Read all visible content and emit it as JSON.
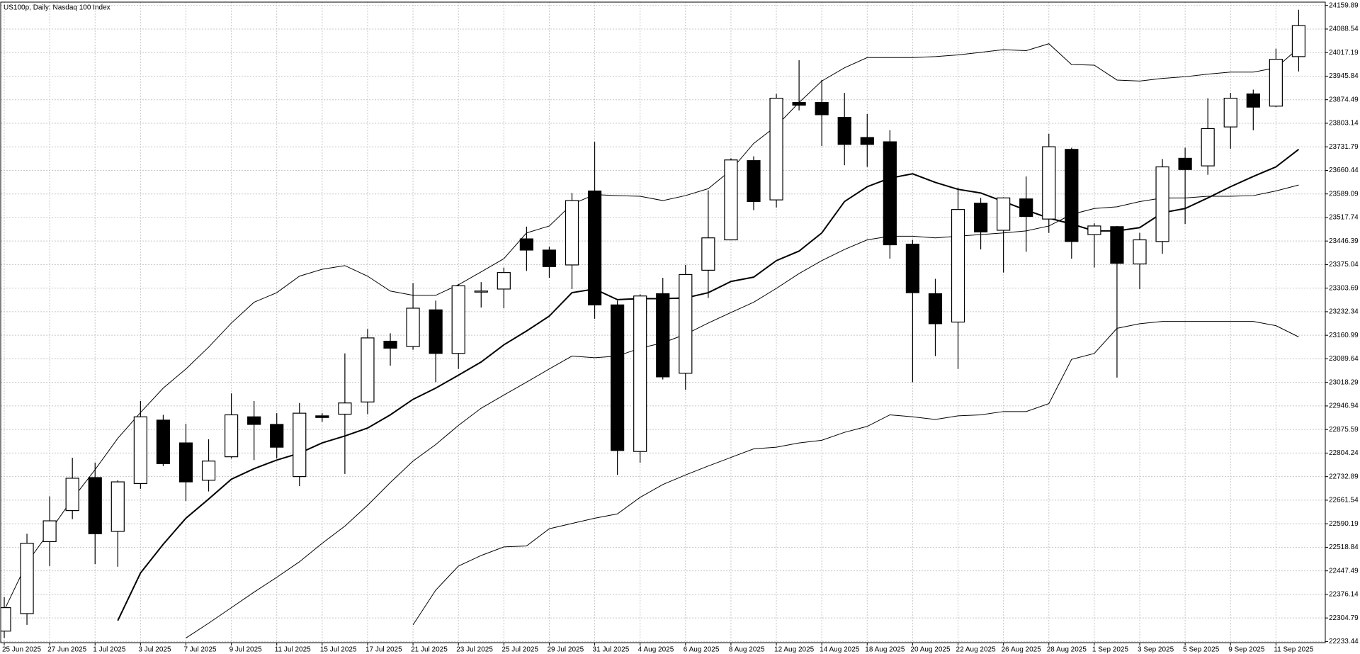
{
  "chart_data": {
    "type": "candlestick",
    "title": "US100p, Daily:  Nasdaq 100 Index",
    "categories": [
      "25 Jun 2025",
      null,
      "27 Jun 2025",
      null,
      "1 Jul 2025",
      null,
      "3 Jul 2025",
      null,
      "7 Jul 2025",
      null,
      "9 Jul 2025",
      null,
      "11 Jul 2025",
      null,
      "15 Jul 2025",
      null,
      "17 Jul 2025",
      null,
      "21 Jul 2025",
      null,
      "23 Jul 2025",
      null,
      "25 Jul 2025",
      null,
      "29 Jul 2025",
      null,
      "31 Jul 2025",
      null,
      "4 Aug 2025",
      null,
      "6 Aug 2025",
      null,
      "8 Aug 2025",
      null,
      "12 Aug 2025",
      null,
      "14 Aug 2025",
      null,
      "18 Aug 2025",
      null,
      "20 Aug 2025",
      null,
      "22 Aug 2025",
      null,
      "26 Aug 2025",
      null,
      "28 Aug 2025",
      null,
      "1 Sep 2025",
      null,
      "3 Sep 2025",
      null,
      "5 Sep 2025",
      null,
      "9 Sep 2025",
      null,
      "11 Sep 2025",
      null
    ],
    "open": [
      22265,
      22318,
      22536,
      22630,
      22730,
      22567,
      22712,
      22904,
      22835,
      22722,
      22793,
      22914,
      22891,
      22733,
      22917,
      22922,
      22959,
      23143,
      23127,
      23238,
      23106,
      23293,
      23301,
      23453,
      23419,
      23374,
      23598,
      23253,
      22809,
      23287,
      23046,
      23358,
      23450,
      23690,
      23571,
      23866,
      23866,
      23821,
      23760,
      23747,
      23437,
      23287,
      23201,
      23561,
      23479,
      23574,
      23513,
      23724,
      23466,
      23490,
      23377,
      23445,
      23697,
      23674,
      23792,
      23892,
      23855,
      24005
    ],
    "high": [
      22368,
      22560,
      22673,
      22790,
      22775,
      22722,
      22962,
      22920,
      22893,
      22846,
      22985,
      22962,
      22925,
      22956,
      22925,
      23106,
      23180,
      23167,
      23319,
      23266,
      23316,
      23322,
      23366,
      23490,
      23429,
      23592,
      23747,
      23266,
      23285,
      23335,
      23374,
      23600,
      23697,
      23703,
      23892,
      23994,
      23934,
      23895,
      23831,
      23782,
      23450,
      23332,
      23608,
      23577,
      23579,
      23642,
      23771,
      23729,
      23500,
      23492,
      23471,
      23695,
      23729,
      23879,
      23895,
      23905,
      24029,
      24147
    ],
    "low": [
      22244,
      22284,
      22462,
      22604,
      22468,
      22460,
      22696,
      22765,
      22659,
      22688,
      22788,
      22783,
      22788,
      22704,
      22899,
      22741,
      22922,
      23069,
      23117,
      23019,
      23059,
      23245,
      23243,
      23356,
      23335,
      23301,
      23211,
      22738,
      22775,
      23027,
      22996,
      23274,
      23450,
      23540,
      23548,
      23842,
      23734,
      23676,
      23671,
      23393,
      23019,
      23098,
      23059,
      23421,
      23351,
      23414,
      23471,
      23393,
      23366,
      23033,
      23301,
      23408,
      23498,
      23647,
      23726,
      23782,
      23852,
      23960
    ],
    "close": [
      22336,
      22531,
      22599,
      22728,
      22560,
      22717,
      22914,
      22772,
      22717,
      22780,
      22920,
      22891,
      22822,
      22925,
      22912,
      22956,
      23153,
      23122,
      23243,
      23106,
      23311,
      23295,
      23351,
      23419,
      23369,
      23569,
      23253,
      22812,
      23280,
      23035,
      23345,
      23456,
      23692,
      23566,
      23879,
      23858,
      23829,
      23739,
      23739,
      23435,
      23290,
      23196,
      23542,
      23474,
      23577,
      23521,
      23732,
      23445,
      23492,
      23379,
      23450,
      23671,
      23663,
      23787,
      23879,
      23852,
      23997,
      24099
    ],
    "up_color": "#ffffff",
    "down_color": "#000000",
    "overlays": [
      {
        "color": "#000000",
        "width": 2,
        "values": [
          null,
          null,
          null,
          null,
          null,
          22297,
          22441,
          22528,
          22607,
          22665,
          22725,
          22757,
          22783,
          22804,
          22835,
          22856,
          22880,
          22920,
          22967,
          23001,
          23040,
          23080,
          23132,
          23174,
          23219,
          23290,
          23301,
          23269,
          23272,
          23272,
          23274,
          23290,
          23324,
          23337,
          23387,
          23416,
          23471,
          23566,
          23611,
          23637,
          23650,
          23624,
          23603,
          23592,
          23566,
          23540,
          23516,
          23498,
          23477,
          23477,
          23487,
          23532,
          23545,
          23577,
          23611,
          23642,
          23671,
          23724
        ]
      },
      {
        "color": "#000000",
        "width": 1,
        "values": [
          22328,
          22472,
          22567,
          22665,
          22754,
          22849,
          22927,
          23001,
          23059,
          23125,
          23198,
          23261,
          23290,
          23340,
          23361,
          23372,
          23340,
          23295,
          23282,
          23282,
          23314,
          23353,
          23393,
          23471,
          23492,
          23558,
          23587,
          23584,
          23582,
          23569,
          23584,
          23605,
          23661,
          23742,
          23795,
          23866,
          23931,
          23971,
          24002,
          24002,
          24002,
          24005,
          24010,
          24018,
          24026,
          24023,
          24044,
          23981,
          23979,
          23934,
          23931,
          23939,
          23944,
          23952,
          23958,
          23958,
          23971,
          24031
        ]
      },
      {
        "color": "#000000",
        "width": 1,
        "values": [
          null,
          null,
          null,
          null,
          null,
          null,
          null,
          null,
          22244,
          22289,
          22336,
          22383,
          22428,
          22475,
          22531,
          22583,
          22646,
          22715,
          22780,
          22830,
          22888,
          22940,
          22980,
          23019,
          23059,
          23098,
          23093,
          23098,
          23122,
          23138,
          23164,
          23198,
          23230,
          23261,
          23303,
          23348,
          23387,
          23421,
          23450,
          23461,
          23461,
          23456,
          23461,
          23466,
          23471,
          23477,
          23492,
          23527,
          23545,
          23550,
          23566,
          23577,
          23577,
          23582,
          23582,
          23584,
          23598,
          23616
        ]
      },
      {
        "color": "#000000",
        "width": 1,
        "values": [
          null,
          null,
          null,
          null,
          null,
          null,
          null,
          null,
          null,
          null,
          null,
          null,
          null,
          null,
          null,
          null,
          null,
          null,
          22284,
          22389,
          22462,
          22494,
          22520,
          22523,
          22575,
          22591,
          22607,
          22620,
          22670,
          22709,
          22738,
          22765,
          22791,
          22817,
          22822,
          22835,
          22843,
          22867,
          22885,
          22920,
          22914,
          22906,
          22917,
          22920,
          22930,
          22930,
          22954,
          23088,
          23106,
          23182,
          23196,
          23203,
          23203,
          23203,
          23203,
          23203,
          23190,
          23156
        ]
      }
    ],
    "ylim": [
      22230,
      24170
    ],
    "yticks": [
      24159.89,
      24088.54,
      24017.19,
      23945.84,
      23874.49,
      23803.14,
      23731.79,
      23660.44,
      23589.09,
      23517.74,
      23446.39,
      23375.04,
      23303.69,
      23232.34,
      23160.99,
      23089.64,
      23018.29,
      22946.94,
      22875.59,
      22804.24,
      22732.89,
      22661.54,
      22590.19,
      22518.84,
      22447.49,
      22376.14,
      22304.79,
      22233.44
    ],
    "grid": true
  }
}
